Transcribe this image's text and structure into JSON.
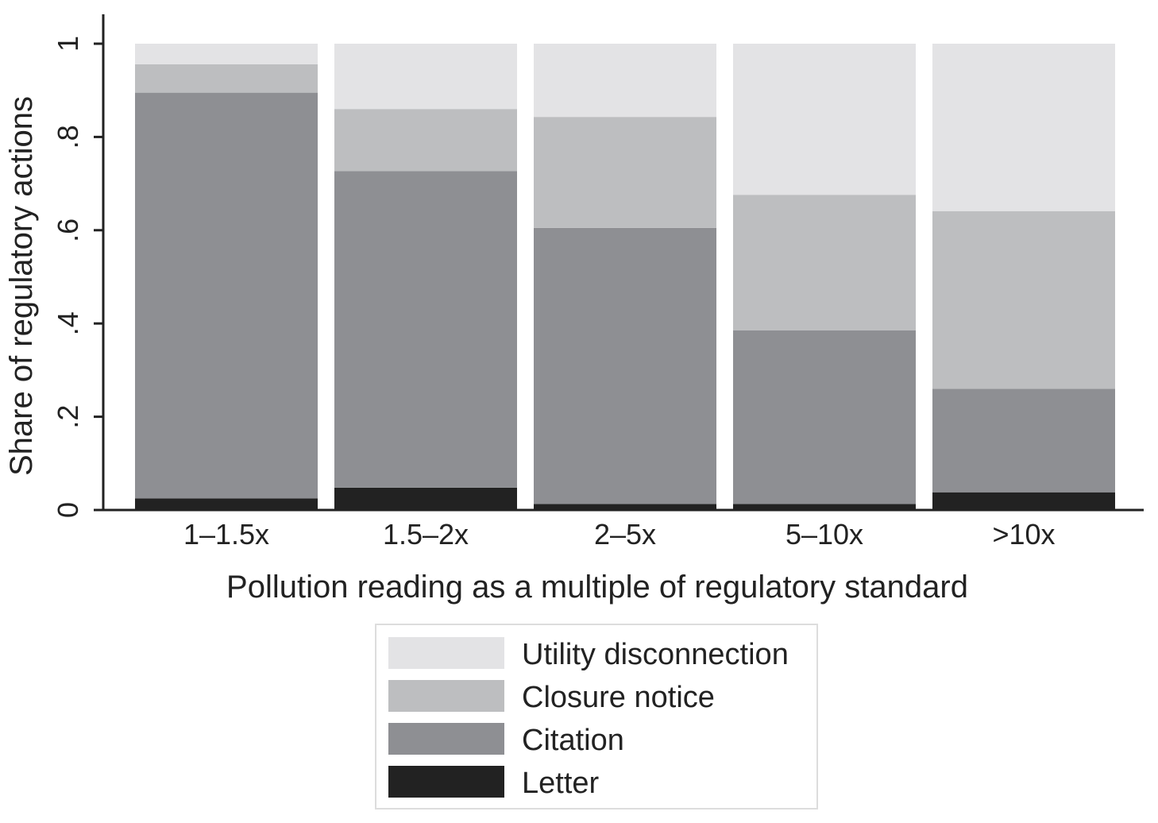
{
  "chart_data": {
    "type": "bar",
    "stacked": true,
    "categories": [
      "1–1.5x",
      "1.5–2x",
      "2–5x",
      "5–10x",
      ">10x"
    ],
    "series": [
      {
        "name": "Letter",
        "color": "#222222",
        "values": [
          0.025,
          0.048,
          0.013,
          0.013,
          0.038
        ]
      },
      {
        "name": "Citation",
        "color": "#8e8f93",
        "values": [
          0.87,
          0.679,
          0.592,
          0.372,
          0.222
        ]
      },
      {
        "name": "Closure notice",
        "color": "#bdbec0",
        "values": [
          0.061,
          0.133,
          0.238,
          0.291,
          0.381
        ]
      },
      {
        "name": "Utility disconnection",
        "color": "#e3e3e5",
        "values": [
          0.044,
          0.14,
          0.157,
          0.324,
          0.359
        ]
      }
    ],
    "xlabel": "Pollution reading as a multiple of regulatory standard",
    "ylabel": "Share of regulatory actions",
    "ylim": [
      0,
      1
    ],
    "yticks": [
      0,
      0.2,
      0.4,
      0.6,
      0.8,
      1
    ],
    "ytick_labels": [
      "0",
      ".2",
      ".4",
      ".6",
      ".8",
      "1"
    ],
    "grid": false,
    "legend": {
      "placement": "bottom-center",
      "order": [
        "Utility disconnection",
        "Closure notice",
        "Citation",
        "Letter"
      ]
    }
  }
}
